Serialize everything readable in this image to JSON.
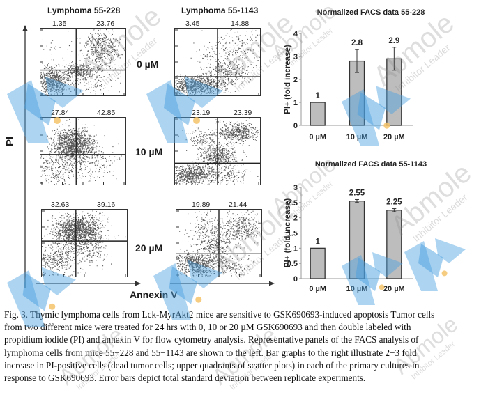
{
  "figure": {
    "facs": {
      "y_axis_label": "PI",
      "x_axis_label": "Annexin V",
      "columns": [
        {
          "title": "Lymphoma 55-228"
        },
        {
          "title": "Lymphoma 55-1143"
        }
      ],
      "rows": [
        {
          "dose": "0 µM",
          "panels": [
            {
              "upper_left": "1.35",
              "upper_right": "23.76"
            },
            {
              "upper_left": "3.45",
              "upper_right": "14.88"
            }
          ]
        },
        {
          "dose": "10 µM",
          "panels": [
            {
              "upper_left": "27.84",
              "upper_right": "42.85"
            },
            {
              "upper_left": "23.19",
              "upper_right": "23.39"
            }
          ]
        },
        {
          "dose": "20 µM",
          "panels": [
            {
              "upper_left": "32.63",
              "upper_right": "39.16"
            },
            {
              "upper_left": "19.89",
              "upper_right": "21.44"
            }
          ]
        }
      ]
    },
    "caption": [
      "Fig. 3. Thymic lymphoma cells from Lck-MyrAkt2 mice are sensitive to GSK690693-induced apoptosis Tumor cells",
      "from two different mice were treated for 24 hrs with 0, 10 or 20 µM GSK690693 and then double labeled with",
      "propidium iodide (PI) and annexin V for flow cytometry analysis. Representative panels of the FACS analysis of",
      "lymphoma cells from mice 55−228 and 55−1143 are shown to the left. Bar graphs to the right illustrate 2−3 fold",
      "increase in PI-positive cells (dead tumor cells; upper quadrants of scatter plots) in each of the primary cultures in",
      "response to GSK690693. Error bars depict total standard deviation between replicate experiments."
    ],
    "watermark": {
      "brand": "Abmole",
      "tagline": "Inhibitor Leader"
    },
    "colors": {
      "bar_fill": "#bdbdbd",
      "bar_stroke": "#333333",
      "scatter": "#3a3a3a",
      "watermark_blue": "#4a9fe0",
      "watermark_dot": "#f4c36a"
    }
  },
  "chart_data": [
    {
      "type": "bar",
      "title": "Normalized FACS data 55-228",
      "categories": [
        "0 µM",
        "10 µM",
        "20 µM"
      ],
      "values": [
        1,
        2.8,
        2.9
      ],
      "data_labels": [
        "1",
        "2.8",
        "2.9"
      ],
      "error": [
        null,
        0.5,
        0.5
      ],
      "xlabel": "",
      "ylabel": "PI+ (fold increase)",
      "ylim": [
        0,
        4
      ],
      "yticks": [
        "0",
        "1",
        "2",
        "3",
        "4"
      ],
      "grid": false
    },
    {
      "type": "bar",
      "title": "Normalized FACS data 55-1143",
      "categories": [
        "0 µM",
        "10 µM",
        "20 µM"
      ],
      "values": [
        1,
        2.55,
        2.25
      ],
      "data_labels": [
        "1",
        "2.55",
        "2.25"
      ],
      "error": [
        null,
        0.05,
        0.05
      ],
      "xlabel": "",
      "ylabel": "PI+ (fold increase)",
      "ylim": [
        0,
        3
      ],
      "yticks": [
        "0",
        "0.5",
        "1",
        "1.5",
        "2",
        "2.5",
        "3"
      ],
      "grid": false
    }
  ]
}
